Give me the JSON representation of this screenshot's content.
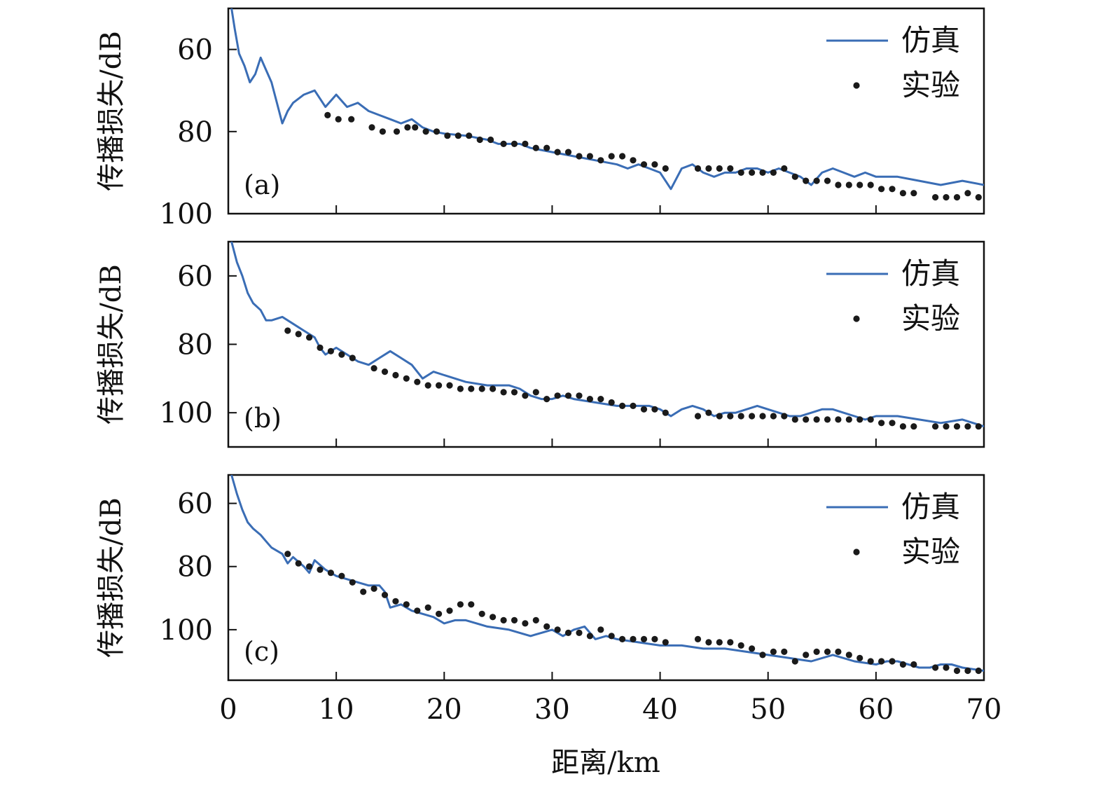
{
  "chart_data": {
    "xlabel": "距离/km",
    "xlim": [
      0,
      70
    ],
    "xticks": [
      0,
      10,
      20,
      30,
      40,
      50,
      60,
      70
    ],
    "colors": {
      "sim": "#3a6db5",
      "exp": "#1a1a1a"
    },
    "panels": [
      {
        "label": "(a)",
        "type": "line",
        "ylabel": "传播损失/dB",
        "ylim": [
          50,
          100
        ],
        "yticks": [
          60,
          80,
          100
        ],
        "legend": {
          "sim": "仿真",
          "exp": "实验",
          "position": "top-right"
        },
        "sim": {
          "x": [
            0.3,
            0.6,
            1.0,
            1.5,
            2.0,
            2.5,
            3.0,
            3.5,
            4.0,
            4.5,
            5.0,
            5.5,
            6.0,
            7.0,
            8.0,
            9.0,
            10.0,
            11.0,
            12.0,
            13.0,
            14.0,
            15.0,
            16.0,
            17.0,
            18.0,
            19.0,
            20.0,
            22.0,
            24.0,
            25.0,
            26.0,
            27.0,
            28.0,
            30.0,
            32.0,
            34.0,
            36.0,
            37.0,
            38.0,
            39.0,
            40.0,
            40.5,
            41.0,
            42.0,
            43.0,
            44.0,
            45.0,
            46.0,
            47.0,
            48.0,
            49.0,
            50.0,
            51.0,
            52.0,
            53.0,
            54.0,
            55.0,
            56.0,
            57.0,
            58.0,
            59.0,
            60.0,
            62.0,
            64.0,
            66.0,
            68.0,
            70.0
          ],
          "y": [
            50,
            55,
            61,
            64,
            68,
            66,
            62,
            65,
            68,
            73,
            78,
            75,
            73,
            71,
            70,
            74,
            71,
            74,
            73,
            75,
            76,
            77,
            78,
            77,
            79,
            80,
            80.5,
            81,
            82,
            83,
            83,
            83,
            84,
            85,
            86,
            87,
            88,
            89,
            88,
            89,
            90,
            92,
            94,
            89,
            88,
            90,
            91,
            90,
            90,
            89,
            89,
            90,
            89,
            90,
            91,
            93,
            90,
            89,
            90,
            91,
            90,
            91,
            91,
            92,
            93,
            92,
            93
          ]
        },
        "exp": {
          "x": [
            9.2,
            10.2,
            11.4,
            13.3,
            14.3,
            15.6,
            16.6,
            17.3,
            18.3,
            19.3,
            20.3,
            21.3,
            22.3,
            23.3,
            24.3,
            25.5,
            26.5,
            27.5,
            28.5,
            29.5,
            30.5,
            31.5,
            32.5,
            33.5,
            34.5,
            35.5,
            36.5,
            37.5,
            38.5,
            39.5,
            40.5,
            43.5,
            44.5,
            45.5,
            46.5,
            47.5,
            48.5,
            49.5,
            50.5,
            51.5,
            52.5,
            53.5,
            54.5,
            55.5,
            56.5,
            57.5,
            58.5,
            59.5,
            60.5,
            61.5,
            62.5,
            63.5,
            65.5,
            66.5,
            67.5,
            68.5,
            69.5
          ],
          "y": [
            76,
            77,
            77,
            79,
            80,
            80,
            79,
            79,
            80,
            80,
            81,
            81,
            81,
            82,
            82,
            83,
            83,
            83,
            84,
            84,
            85,
            85,
            86,
            86,
            87,
            86,
            86,
            87,
            88,
            88,
            89,
            89,
            89,
            89,
            89,
            90,
            90,
            90,
            90,
            89,
            91,
            92,
            92,
            92,
            93,
            93,
            93,
            93,
            94,
            94,
            95,
            95,
            96,
            96,
            96,
            95,
            96
          ]
        }
      },
      {
        "label": "(b)",
        "type": "line",
        "ylabel": "传播损失/dB",
        "ylim": [
          50,
          110
        ],
        "yticks": [
          60,
          80,
          100
        ],
        "legend": {
          "sim": "仿真",
          "exp": "实验",
          "position": "top-right"
        },
        "sim": {
          "x": [
            0.3,
            0.8,
            1.3,
            1.8,
            2.3,
            3.0,
            3.5,
            4.0,
            5.0,
            6.0,
            7.0,
            8.0,
            8.5,
            9.0,
            10.0,
            11.0,
            12.0,
            13.0,
            14.0,
            15.0,
            16.0,
            17.0,
            18.0,
            19.0,
            20.0,
            22.0,
            24.0,
            25.0,
            26.0,
            27.0,
            28.0,
            29.0,
            30.0,
            31.0,
            32.0,
            34.0,
            36.0,
            38.0,
            39.0,
            40.0,
            41.0,
            42.0,
            43.0,
            44.0,
            45.0,
            46.0,
            47.0,
            48.0,
            49.0,
            50.0,
            51.0,
            52.0,
            53.0,
            54.0,
            55.0,
            56.0,
            57.0,
            58.0,
            59.0,
            60.0,
            62.0,
            64.0,
            66.0,
            68.0,
            69.0,
            70.0
          ],
          "y": [
            50,
            56,
            60,
            65,
            68,
            70,
            73,
            73,
            72,
            74,
            76,
            78,
            81,
            83,
            81,
            83,
            85,
            86,
            84,
            82,
            84,
            86,
            90,
            88,
            89,
            91,
            92,
            92,
            92,
            93,
            95,
            96,
            96,
            95,
            96,
            97,
            98,
            98,
            98,
            99,
            101,
            99,
            98,
            99,
            101,
            100,
            100,
            99,
            98,
            99,
            100,
            101,
            101,
            100,
            99,
            99,
            100,
            101,
            102,
            101,
            101,
            102,
            103,
            102,
            103,
            104
          ]
        },
        "exp": {
          "x": [
            5.5,
            6.5,
            7.5,
            8.5,
            9.5,
            10.5,
            11.5,
            13.5,
            14.5,
            15.5,
            16.5,
            17.5,
            18.5,
            19.5,
            20.5,
            21.5,
            22.5,
            23.5,
            24.5,
            25.5,
            26.5,
            27.5,
            28.5,
            29.5,
            30.5,
            31.5,
            32.5,
            33.5,
            34.5,
            35.5,
            36.5,
            37.5,
            38.5,
            39.5,
            40.5,
            43.5,
            44.5,
            45.5,
            46.5,
            47.5,
            48.5,
            49.5,
            50.5,
            51.5,
            52.5,
            53.5,
            54.5,
            55.5,
            56.5,
            57.5,
            58.5,
            59.5,
            60.5,
            61.5,
            62.5,
            63.5,
            65.5,
            66.5,
            67.5,
            68.5,
            69.5
          ],
          "y": [
            76,
            77,
            78,
            81,
            82,
            83,
            84,
            87,
            88,
            89,
            90,
            91,
            92,
            92,
            92,
            93,
            93,
            93,
            93,
            94,
            94,
            95,
            94,
            96,
            95,
            95,
            95,
            96,
            96,
            97,
            98,
            98,
            99,
            99,
            100,
            101,
            100,
            101,
            101,
            101,
            101,
            101,
            101,
            101,
            102,
            102,
            102,
            102,
            102,
            102,
            102,
            102,
            103,
            103,
            104,
            104,
            104,
            104,
            104,
            104,
            104
          ]
        }
      },
      {
        "label": "(c)",
        "type": "line",
        "ylabel": "传播损失/dB",
        "ylim": [
          51,
          116
        ],
        "yticks": [
          60,
          80,
          100
        ],
        "legend": {
          "sim": "仿真",
          "exp": "实验",
          "position": "top-right"
        },
        "sim": {
          "x": [
            0.3,
            0.8,
            1.3,
            1.8,
            2.3,
            3.0,
            3.5,
            4.0,
            5.0,
            5.5,
            6.0,
            7.0,
            7.5,
            8.0,
            9.0,
            10.0,
            11.0,
            12.0,
            13.0,
            14.0,
            14.5,
            15.0,
            16.0,
            17.0,
            18.0,
            19.0,
            20.0,
            21.0,
            22.0,
            24.0,
            26.0,
            28.0,
            29.0,
            30.0,
            31.0,
            32.0,
            33.0,
            34.0,
            35.0,
            36.0,
            38.0,
            40.0,
            42.0,
            44.0,
            46.0,
            48.0,
            50.0,
            52.0,
            54.0,
            55.0,
            56.0,
            57.0,
            58.0,
            60.0,
            61.0,
            62.0,
            64.0,
            65.0,
            66.0,
            67.0,
            68.0,
            70.0
          ],
          "y": [
            51,
            57,
            62,
            66,
            68,
            70,
            72,
            74,
            76,
            79,
            77,
            80,
            82,
            78,
            81,
            83,
            84,
            85,
            86,
            86,
            88,
            93,
            92,
            94,
            95,
            96,
            98,
            97,
            97,
            99,
            100,
            102,
            101,
            100,
            102,
            100,
            99,
            103,
            102,
            103,
            104,
            105,
            105,
            106,
            106,
            107,
            108,
            109,
            110,
            109,
            108,
            109,
            110,
            111,
            110,
            110,
            112,
            112,
            111,
            111,
            112,
            113
          ]
        },
        "exp": {
          "x": [
            5.5,
            6.5,
            7.5,
            8.5,
            9.5,
            10.5,
            11.5,
            12.5,
            13.5,
            14.5,
            15.5,
            16.5,
            17.5,
            18.5,
            19.5,
            20.5,
            21.5,
            22.5,
            23.5,
            24.5,
            25.5,
            26.5,
            27.5,
            28.5,
            29.5,
            30.5,
            31.5,
            32.5,
            33.5,
            34.5,
            35.5,
            36.5,
            37.5,
            38.5,
            39.5,
            40.5,
            43.5,
            44.5,
            45.5,
            46.5,
            47.5,
            48.5,
            49.5,
            50.5,
            51.5,
            52.5,
            53.5,
            54.5,
            55.5,
            56.5,
            57.5,
            58.5,
            59.5,
            60.5,
            61.5,
            62.5,
            63.5,
            65.5,
            66.5,
            67.5,
            68.5,
            69.5
          ],
          "y": [
            76,
            79,
            80,
            81,
            82,
            83,
            85,
            88,
            87,
            89,
            91,
            92,
            94,
            93,
            95,
            94,
            92,
            92,
            95,
            96,
            97,
            97,
            98,
            97,
            99,
            100,
            101,
            101,
            102,
            100,
            102,
            103,
            103,
            103,
            103,
            104,
            103,
            104,
            104,
            104,
            105,
            106,
            108,
            107,
            107,
            110,
            108,
            107,
            107,
            107,
            108,
            109,
            110,
            110,
            110,
            111,
            111,
            112,
            112,
            113,
            113,
            113
          ]
        }
      }
    ]
  }
}
